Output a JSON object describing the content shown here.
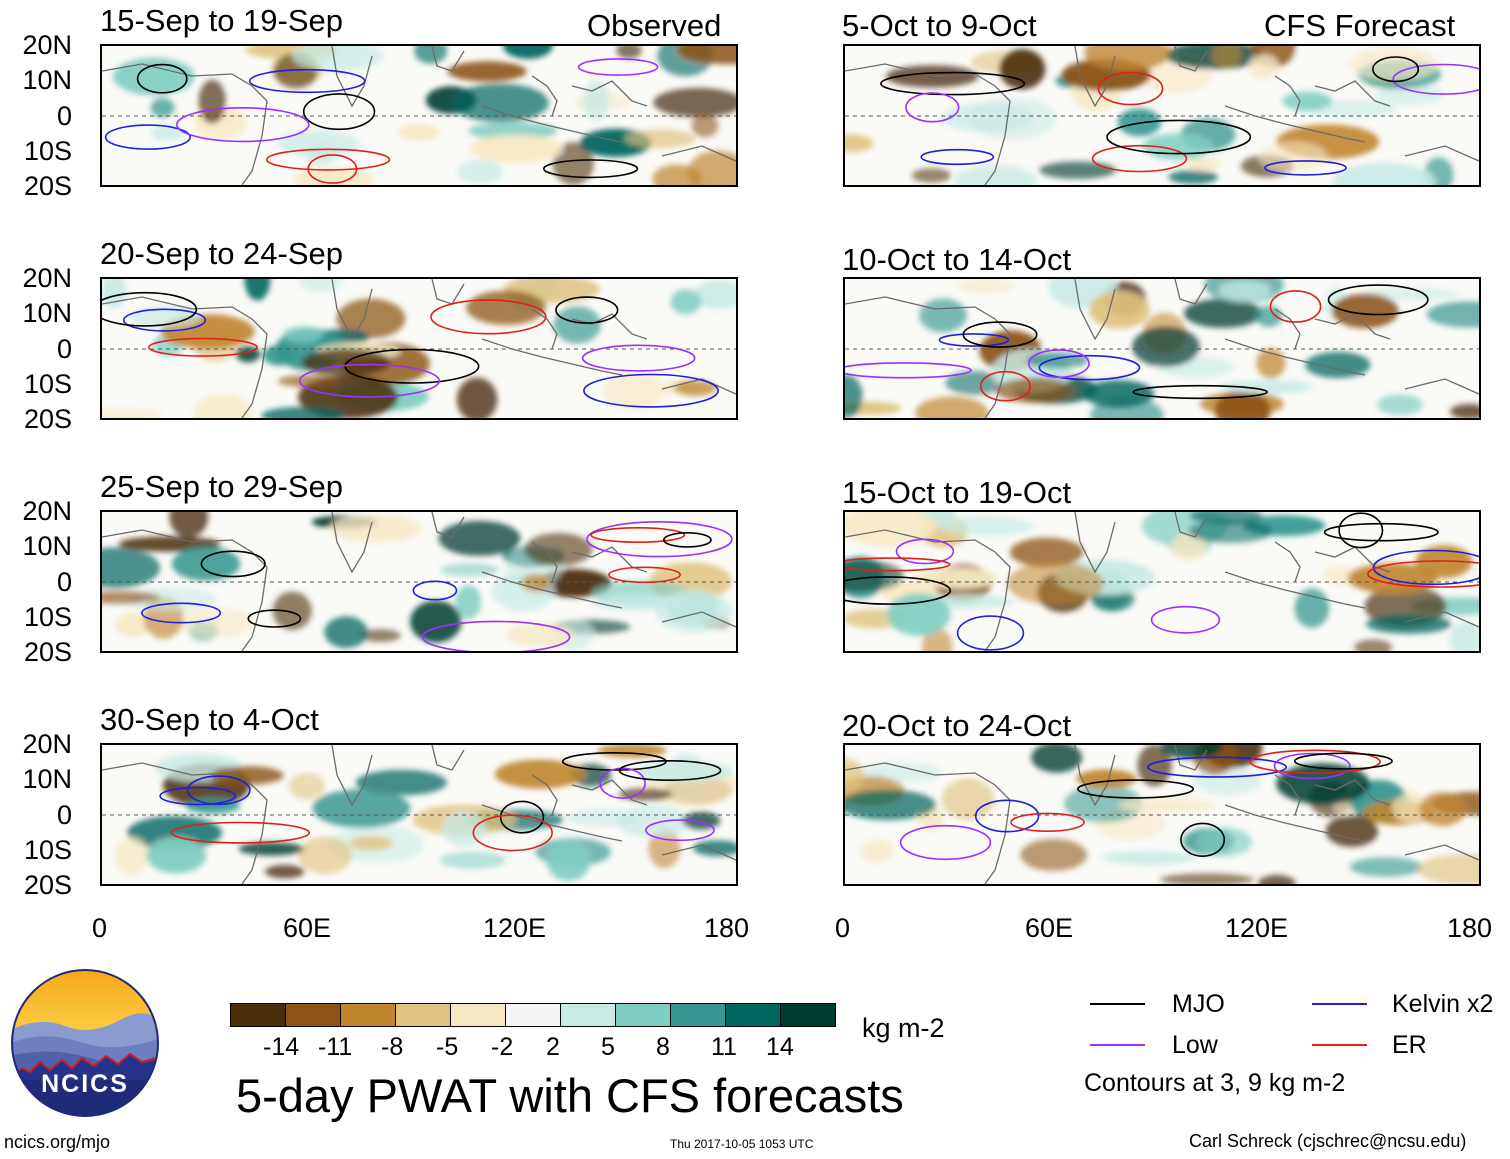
{
  "header": {
    "left_label": "Observed",
    "right_label": "CFS Forecast"
  },
  "axis": {
    "lat_labels": [
      "20N",
      "10N",
      "0",
      "10S",
      "20S"
    ],
    "lon_labels": [
      "0",
      "60E",
      "120E",
      "180"
    ]
  },
  "panels": {
    "observed": [
      {
        "title": "15-Sep to 19-Sep"
      },
      {
        "title": "20-Sep to 24-Sep"
      },
      {
        "title": "25-Sep to 29-Sep"
      },
      {
        "title": "30-Sep to 4-Oct"
      }
    ],
    "forecast": [
      {
        "title": "5-Oct to 9-Oct"
      },
      {
        "title": "10-Oct to 14-Oct"
      },
      {
        "title": "15-Oct to 19-Oct"
      },
      {
        "title": "20-Oct to 24-Oct"
      }
    ]
  },
  "colorbar": {
    "colors": [
      "#4a2e0a",
      "#8b5314",
      "#bf852f",
      "#dfc27d",
      "#f6e8c3",
      "#f5f5f5",
      "#c7eae5",
      "#80cdc1",
      "#35978f",
      "#01665e",
      "#003c30"
    ],
    "ticks": [
      "-14",
      "-11",
      "-8",
      "-5",
      "-2",
      "2",
      "5",
      "8",
      "11",
      "14"
    ],
    "units": "kg m-2"
  },
  "legend": {
    "items": [
      {
        "label": "MJO",
        "color": "#000000"
      },
      {
        "label": "Kelvin x2",
        "color": "#1f1fdc"
      },
      {
        "label": "Low",
        "color": "#9b30ff"
      },
      {
        "label": "ER",
        "color": "#e0201b"
      }
    ],
    "note": "Contours at 3, 9 kg m-2"
  },
  "title": "5-day PWAT with CFS forecasts",
  "logo_text": "NCICS",
  "footer": {
    "url": "ncics.org/mjo",
    "timestamp": "Thu 2017-10-05 1053 UTC",
    "author": "Carl Schreck (cjschrec@ncsu.edu)"
  }
}
